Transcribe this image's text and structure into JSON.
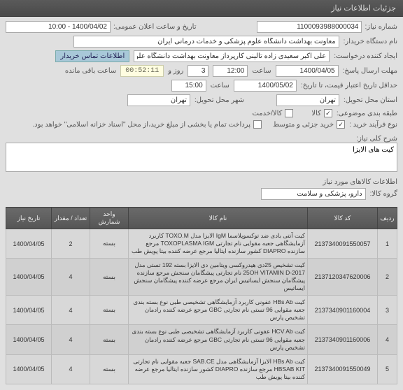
{
  "header": {
    "title": "جزئیات اطلاعات نیاز"
  },
  "form": {
    "need_no_label": "شماره نیاز:",
    "need_no": "1100093988000034",
    "announce_label": "تاریخ و ساعت اعلان عمومی:",
    "announce_value": "1400/04/02 - 10:00",
    "buyer_label": "نام دستگاه خریدار:",
    "buyer_value": "معاونت بهداشت دانشگاه علوم پزشکی و خدمات درمانی ایران",
    "creator_label": "ایجاد کننده درخواست:",
    "creator_value": "علی اکبر سعیدی زاده تالینی کارپرداز معاونت بهداشت دانشگاه علوم پزشکی و",
    "contact_tab": "اطلاعات تماس خریدار",
    "deadline_label": "مهلت ارسال پاسخ:",
    "deadline_date": "1400/04/05",
    "time_label": "ساعت",
    "deadline_time": "12:00",
    "day_count": "3",
    "day_label": "روز و",
    "timer": "00:52:11",
    "timer_label": "ساعت باقی مانده",
    "validity_label": "حداقل تاریخ اعتبار قیمت، تا تاریخ:",
    "validity_date": "1400/05/02",
    "validity_time": "15:00",
    "delivery_loc_label": "استان محل تحویل:",
    "delivery_loc": "تهران",
    "city_label": "شهر محل تحویل:",
    "city": "تهران",
    "budget_label": "طبقه بندی موضوعی:",
    "budget_item1": "کالا",
    "budget_item2": "کالا/خدمت",
    "process_label": "نوع فرآیند خرید :",
    "process_item1": "خرید جزئی و متوسط",
    "process_note": "پرداخت تمام یا بخشی از مبلغ خرید،از محل \"اسناد خزانه اسلامی\" خواهد بود.",
    "desc_label": "شرح کلی نیاز:",
    "desc_value": "کیت های الایزا",
    "items_title": "اطلاعات کالاهای مورد نیاز",
    "group_label": "گروه کالا:",
    "group_value": "دارو، پزشکی و سلامت"
  },
  "table": {
    "cols": [
      "ردیف",
      "کد کالا",
      "نام کالا",
      "واحد شمارش",
      "تعداد / مقدار",
      "تاریخ نیاز"
    ],
    "rows": [
      [
        "1",
        "2137340091550057",
        "کیت آنتی بادی ضد توکسوپلاسما IgM الایزا مدل TOXO.M کاربرد آزمایشگاهی جعبه مقوایی نام تجارتی TOXOPLASMA IGM مرجع سازنده DIAPRO کشور سازنده ایتالیا مرجع عرضه کننده بیتا پویش طب",
        "بسته",
        "2",
        "1400/04/05"
      ],
      [
        "2",
        "2137120347620006",
        "کیت تشخیص 25دی هیدروکسی ویتامین دی الایزا بسته 192 تستی مدل 2017-25OH VITAMIN D نام تجارتی پیشگامان سنجش مرجع سازنده پیشگامان سنجش ایساتیس ایران مرجع عرضه کننده پیشگامان سنجش ایساتیس",
        "بسته",
        "4",
        "1400/04/05"
      ],
      [
        "3",
        "2137340901160004",
        "کیت HBs Ab عفونی کاربرد آزمایشگاهی تشخیصی طبی نوع بسته بندی جعبه مقوایی 96 تستی نام تجارتی GBC مرجع عرضه کننده رادمان تشخیص پارس",
        "بسته",
        "4",
        "1400/04/05"
      ],
      [
        "4",
        "2137340901160006",
        "کیت HCV Ab عفونی کاربرد آزمایشگاهی تشخیصی طبی نوع بسته بندی جعبه مقوایی 96 تستی نام تجارتی GBC مرجع عرضه کننده رادمان تشخیص پارس",
        "بسته",
        "4",
        "1400/04/05"
      ],
      [
        "5",
        "2137340091550049",
        "کیت HBs Ab الایزا آزمایشگاهی مدل SAB.CE جعبه مقوایی نام تجارتی HBSAB KIT مرجع سازنده DIAPRO کشور سازنده ایتالیا مرجع عرضه کننده بیتا پویش طب",
        "بسته",
        "4",
        "1400/04/05"
      ]
    ]
  }
}
